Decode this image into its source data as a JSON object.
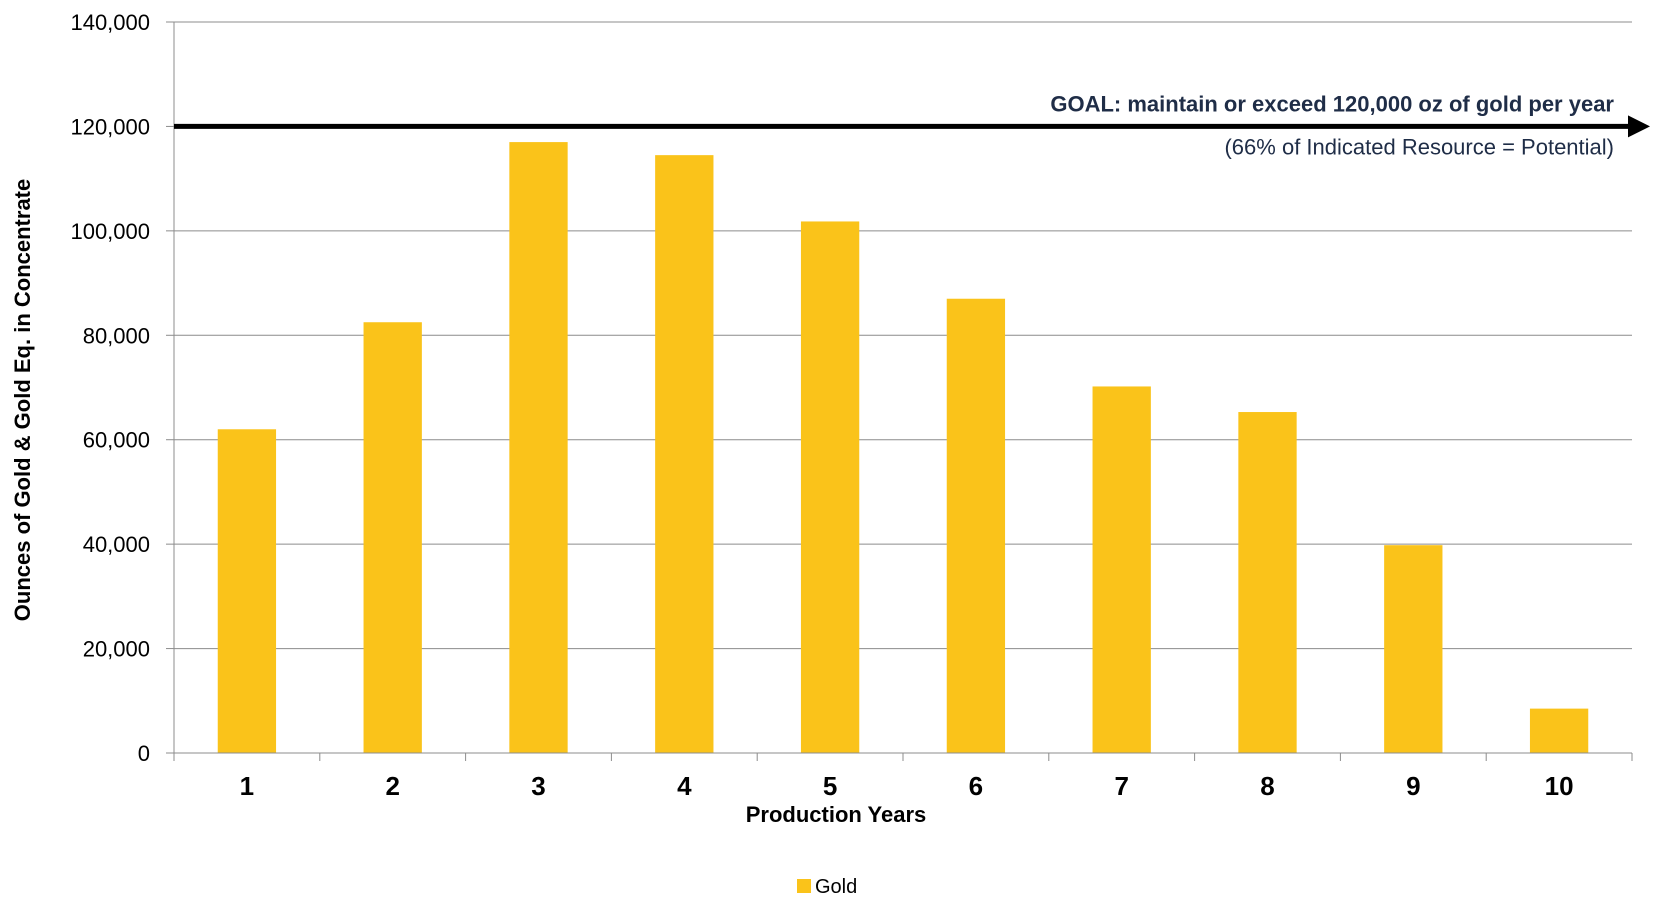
{
  "chart_data": {
    "type": "bar",
    "categories": [
      "1",
      "2",
      "3",
      "4",
      "5",
      "6",
      "7",
      "8",
      "9",
      "10"
    ],
    "series": [
      {
        "name": "Gold",
        "values": [
          62000,
          82500,
          117000,
          114500,
          101800,
          87000,
          70200,
          65300,
          39800,
          8500
        ],
        "color": "#fac31a"
      }
    ],
    "xlabel": "Production Years",
    "ylabel": "Ounces of Gold & Gold Eq. in Concentrate",
    "ylim": [
      0,
      140000
    ],
    "yticks": [
      0,
      20000,
      40000,
      60000,
      80000,
      100000,
      120000,
      140000
    ],
    "ytick_labels": [
      "0",
      "20,000",
      "40,000",
      "60,000",
      "80,000",
      "100,000",
      "120,000",
      "140,000"
    ],
    "grid": true,
    "legend_position": "bottom",
    "goal_line": {
      "value": 120000,
      "label": "GOAL: maintain or exceed 120,000 oz of gold per year",
      "sublabel": "(66% of Indicated Resource = Potential)",
      "color": "#000000",
      "text_color": "#1f2d47"
    }
  }
}
